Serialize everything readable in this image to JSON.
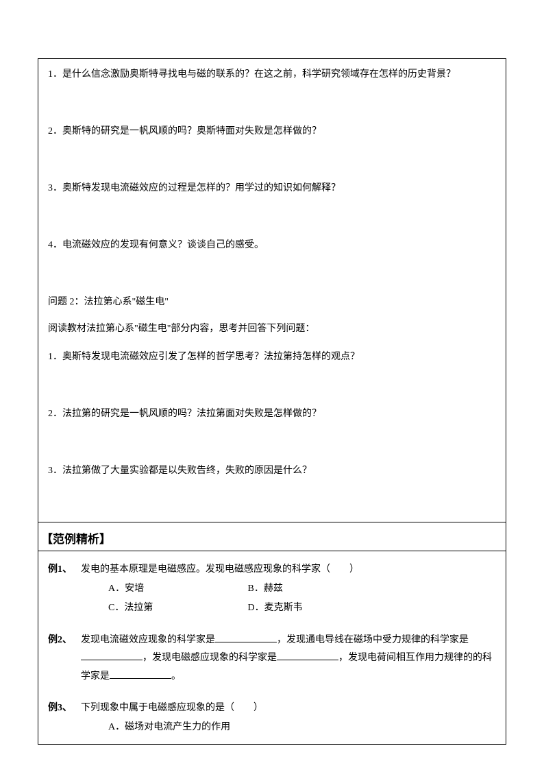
{
  "section1": {
    "q1": "1．是什么信念激励奥斯特寻找电与磁的联系的？在这之前，科学研究领域存在怎样的历史背景？",
    "q2": "2．奥斯特的研究是一帆风顺的吗？奥斯特面对失败是怎样做的？",
    "q3": "3．奥斯特发现电流磁效应的过程是怎样的？用学过的知识如何解释？",
    "q4": "4．电流磁效应的发现有何意义？谈谈自己的感受。"
  },
  "section2": {
    "title": "问题 2：法拉第心系\"磁生电\"",
    "intro": "阅读教材法拉第心系\"磁生电\"部分内容，思考并回答下列问题：",
    "q1": "1．奥斯特发现电流磁效应引发了怎样的哲学思考？法拉第持怎样的观点？",
    "q2": "2．法拉第的研究是一帆风顺的吗？法拉第面对失败是怎样做的？",
    "q3": "3．法拉第做了大量实验都是以失败告终，失败的原因是什么？"
  },
  "examples_header": "【范例精析】",
  "examples": {
    "ex1": {
      "label": "例1、",
      "text": "发电的基本原理是电磁感应。发现电磁感应现象的科学家（　　）",
      "optA": "A．安培",
      "optB": "B．赫兹",
      "optC": "C．法拉第",
      "optD": "D．麦克斯韦"
    },
    "ex2": {
      "label": "例2、",
      "text1": "发现电流磁效应现象的科学家是",
      "text2": "，发现通电导线在磁场中受力规律的科学家是",
      "text3": "，发现电磁感应现象的科学家是",
      "text4": "，发现电荷间相互作用力规律的的科学家是",
      "text5": "。"
    },
    "ex3": {
      "label": "例3、",
      "text": "下列现象中属于电磁感应现象的是（　　）",
      "optA": "A．磁场对电流产生力的作用"
    }
  }
}
